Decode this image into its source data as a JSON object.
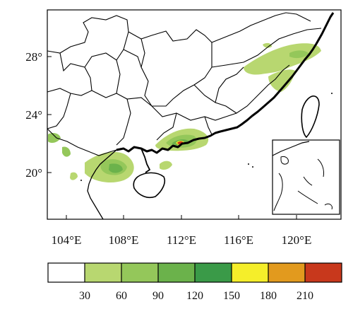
{
  "map": {
    "x_ticks": [
      "104°E",
      "108°E",
      "112°E",
      "116°E",
      "120°E"
    ],
    "y_ticks": [
      "28°",
      "24°",
      "20°"
    ]
  },
  "colorbar": {
    "labels": [
      "30",
      "60",
      "90",
      "120",
      "150",
      "180",
      "210"
    ],
    "colors": [
      "#ffffff",
      "#b8d770",
      "#94c75a",
      "#6bb24b",
      "#3a9a48",
      "#f5ee2a",
      "#e29a1e",
      "#c8381c"
    ]
  },
  "colors": {
    "coast": "#000000",
    "border": "#000000"
  }
}
